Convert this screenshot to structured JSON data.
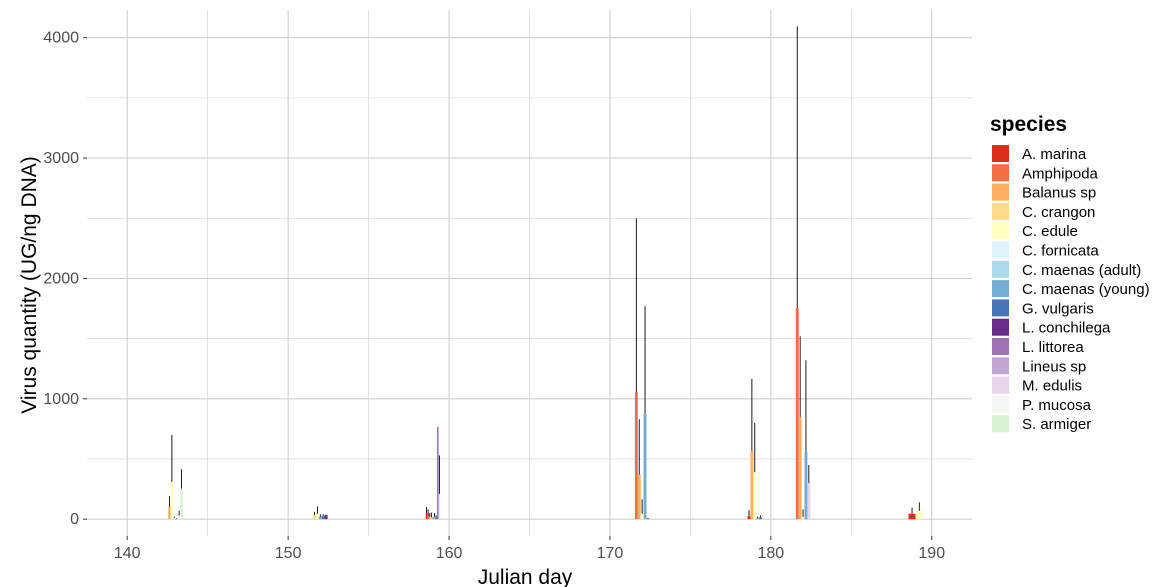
{
  "chart_data": {
    "type": "bar",
    "xlabel": "Julian day",
    "ylabel": "Virus quantity (UG/ng DNA)",
    "xlim": [
      137.5,
      192.5
    ],
    "ylim": [
      -140,
      4230
    ],
    "x_ticks": [
      140,
      150,
      160,
      170,
      180,
      190
    ],
    "y_ticks": [
      0,
      1000,
      2000,
      3000,
      4000
    ],
    "grid": true,
    "legend_position": "right",
    "legend_title": "species",
    "groups": [
      {
        "day": 143,
        "bars": [
          {
            "species": "Balanus sp",
            "value": 100,
            "error": 90
          },
          {
            "species": "C. edule",
            "value": 310,
            "error": 390
          },
          {
            "species": "C. fornicata",
            "value": 10,
            "error": 10
          },
          {
            "species": "C. maenas (young)",
            "value": 5,
            "error": 5
          },
          {
            "species": "P. mucosa",
            "value": 30,
            "error": 40
          },
          {
            "species": "S. armiger",
            "value": 255,
            "error": 160
          }
        ]
      },
      {
        "day": 152,
        "bars": [
          {
            "species": "C. crangon",
            "value": 35,
            "error": 25
          },
          {
            "species": "C. edule",
            "value": 45,
            "error": 60
          },
          {
            "species": "C. maenas (young)",
            "value": 20,
            "error": 20
          },
          {
            "species": "G. vulgaris",
            "value": 25,
            "error": 15
          },
          {
            "species": "L. conchilega",
            "value": 35,
            "error": 0
          }
        ]
      },
      {
        "day": 159,
        "bars": [
          {
            "species": "A. marina",
            "value": 50,
            "error": 50
          },
          {
            "species": "Amphipoda",
            "value": 20,
            "error": 60
          },
          {
            "species": "Balanus sp",
            "value": 20,
            "error": 30
          },
          {
            "species": "C. crangon",
            "value": 15,
            "error": 40
          },
          {
            "species": "C. edule",
            "value": 5,
            "error": 10
          },
          {
            "species": "C. maenas (young)",
            "value": 20,
            "error": 30
          },
          {
            "species": "G. vulgaris",
            "value": 15,
            "error": 15
          },
          {
            "species": "L. littorea",
            "value": 765,
            "error": 0
          },
          {
            "species": "S. armiger",
            "value": 210,
            "error": 320
          }
        ]
      },
      {
        "day": 172,
        "bars": [
          {
            "species": "Amphipoda",
            "value": 1055,
            "error": 1445
          },
          {
            "species": "Balanus sp",
            "value": 370,
            "error": 460
          },
          {
            "species": "C. edule",
            "value": 45,
            "error": 120
          },
          {
            "species": "C. maenas (young)",
            "value": 870,
            "error": 900
          },
          {
            "species": "G. vulgaris",
            "value": 5,
            "error": 5
          }
        ]
      },
      {
        "day": 179,
        "bars": [
          {
            "species": "A. marina",
            "value": 25,
            "error": 50
          },
          {
            "species": "Balanus sp",
            "value": 565,
            "error": 600
          },
          {
            "species": "C. edule",
            "value": 390,
            "error": 410
          },
          {
            "species": "C. maenas (young)",
            "value": 10,
            "error": 10
          },
          {
            "species": "G. vulgaris",
            "value": 15,
            "error": 15
          }
        ]
      },
      {
        "day": 182,
        "bars": [
          {
            "species": "Amphipoda",
            "value": 1755,
            "error": 2340
          },
          {
            "species": "Balanus sp",
            "value": 850,
            "error": 670
          },
          {
            "species": "C. edule",
            "value": 20,
            "error": 60
          },
          {
            "species": "C. maenas (young)",
            "value": 560,
            "error": 760
          },
          {
            "species": "M. edulis",
            "value": 300,
            "error": 150
          }
        ]
      },
      {
        "day": 189,
        "bars": [
          {
            "species": "A. marina",
            "value": 45,
            "error": 50
          },
          {
            "species": "C. edule",
            "value": 70,
            "error": 70
          }
        ]
      }
    ]
  },
  "legend": {
    "title": "species",
    "items": [
      {
        "label": "A. marina",
        "color": "#d7301f"
      },
      {
        "label": "Amphipoda",
        "color": "#f26d43"
      },
      {
        "label": "Balanus sp",
        "color": "#fdae61"
      },
      {
        "label": "C. crangon",
        "color": "#fed98e"
      },
      {
        "label": "C. edule",
        "color": "#ffffbf"
      },
      {
        "label": "C. fornicata",
        "color": "#e0f3f8"
      },
      {
        "label": "C. maenas (adult)",
        "color": "#abd9e9"
      },
      {
        "label": "C. maenas (young)",
        "color": "#74add1"
      },
      {
        "label": "G. vulgaris",
        "color": "#4575b4"
      },
      {
        "label": "L. conchilega",
        "color": "#6a2c8a"
      },
      {
        "label": "L. littorea",
        "color": "#9e72b5"
      },
      {
        "label": "Lineus sp",
        "color": "#c2a5d0"
      },
      {
        "label": "M. edulis",
        "color": "#e6d5e9"
      },
      {
        "label": "P. mucosa",
        "color": "#f5f5f5"
      },
      {
        "label": "S. armiger",
        "color": "#d9f0d3"
      }
    ]
  }
}
